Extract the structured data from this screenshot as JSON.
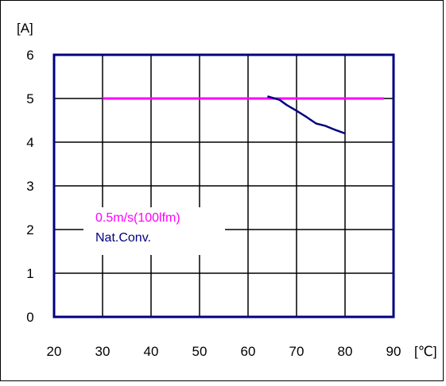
{
  "chart_data": {
    "type": "line",
    "y_unit_label": "[A]",
    "x_unit_label": "[℃]",
    "xlim": [
      20,
      90
    ],
    "ylim": [
      0,
      6
    ],
    "x_ticks": [
      20,
      30,
      40,
      50,
      60,
      70,
      80,
      90
    ],
    "y_ticks": [
      0,
      1,
      2,
      3,
      4,
      5,
      6
    ],
    "grid": true,
    "legend_position": "lower-left, inside plot",
    "series": [
      {
        "name": "0.5m/s(100lfm)",
        "color": "#ff00ff",
        "x": [
          30,
          88
        ],
        "y": [
          5.0,
          5.0
        ]
      },
      {
        "name": "Nat.Conv.",
        "color": "#000080",
        "x": [
          64,
          66.5,
          68,
          70,
          72,
          74,
          76,
          78,
          80
        ],
        "y": [
          5.05,
          4.97,
          4.85,
          4.72,
          4.58,
          4.43,
          4.37,
          4.28,
          4.2
        ]
      }
    ]
  }
}
